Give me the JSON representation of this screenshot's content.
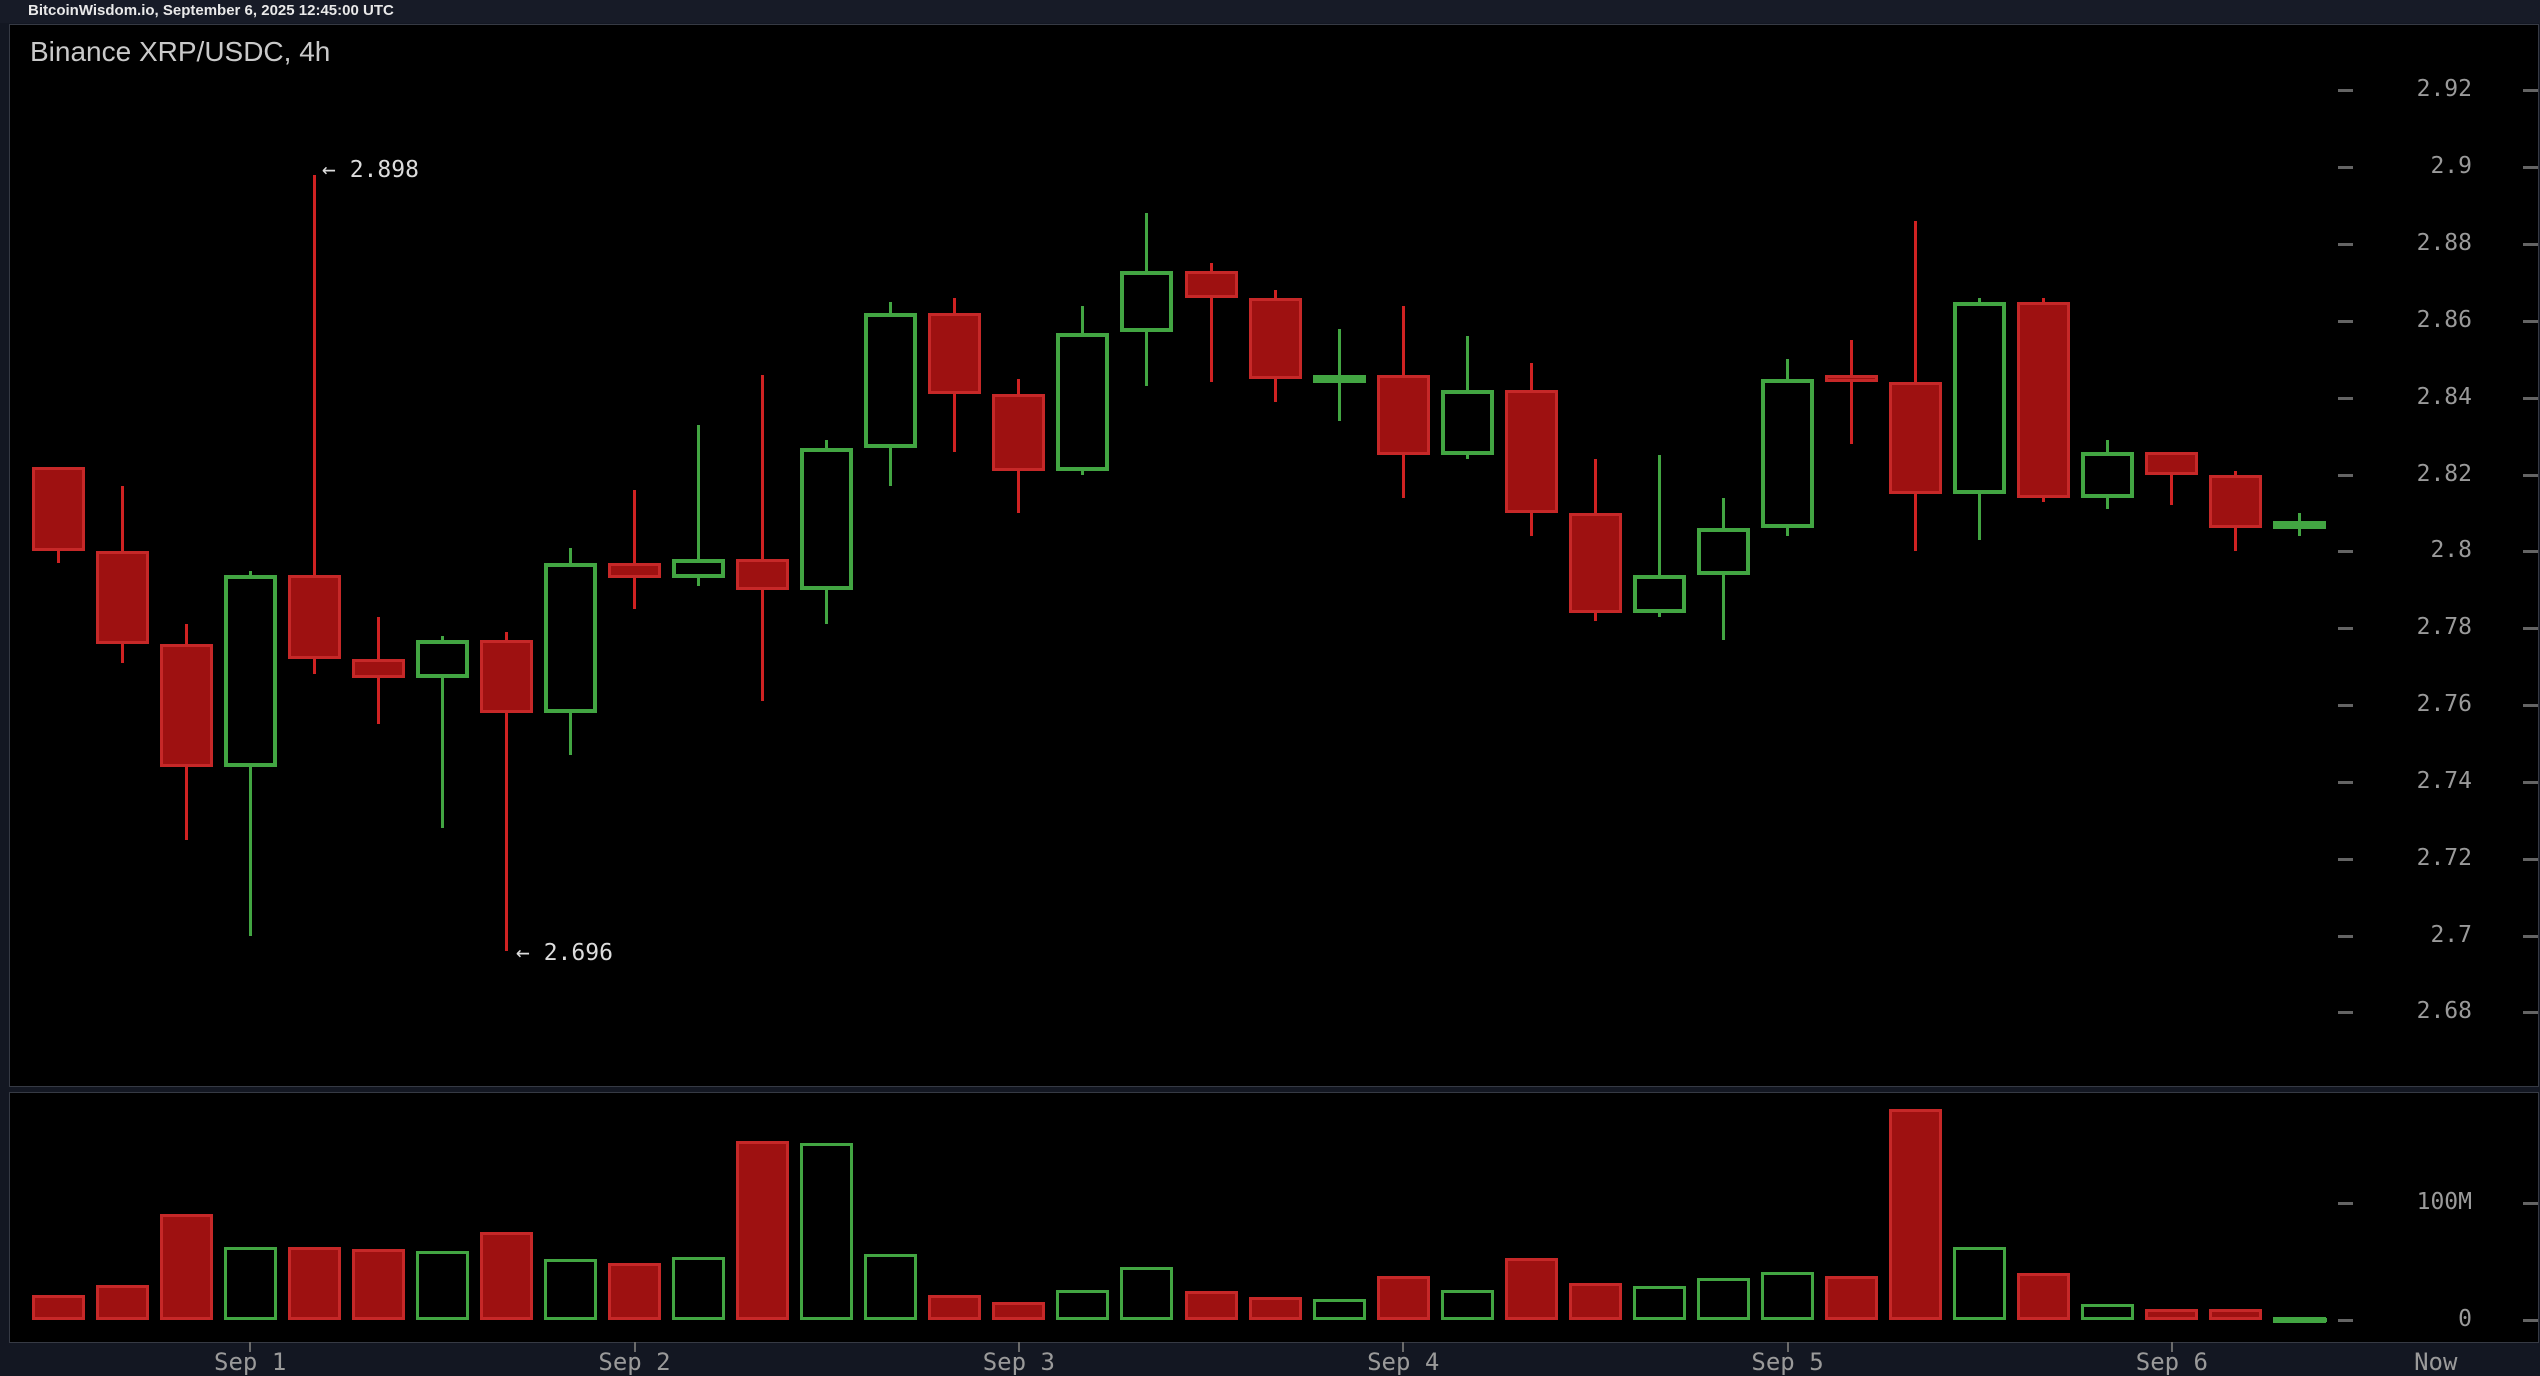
{
  "header": {
    "source_line": "BitcoinWisdom.io, September 6, 2025 12:45:00 UTC"
  },
  "chart": {
    "title": "Binance XRP/USDC, 4h"
  },
  "annotations": {
    "high_label": "← 2.898",
    "low_label": "← 2.696"
  },
  "colors": {
    "background": "#131722",
    "pane_bg": "#000000",
    "bull": "#42a542",
    "bear_fill": "#9e1111",
    "bear_border": "#c62828",
    "axis_text": "#9a9a9a",
    "annotation_text": "#dcdcdc"
  },
  "chart_data": {
    "type": "candlestick",
    "symbol": "Binance XRP/USDC",
    "interval": "4h",
    "title": "Binance XRP/USDC, 4h",
    "legend_position": "none",
    "grid": "off",
    "price_axis": {
      "ylim": [
        2.67,
        2.93
      ],
      "ticks": [
        {
          "label": "2.92",
          "value": 2.92
        },
        {
          "label": "2.9",
          "value": 2.9
        },
        {
          "label": "2.88",
          "value": 2.88
        },
        {
          "label": "2.86",
          "value": 2.86
        },
        {
          "label": "2.84",
          "value": 2.84
        },
        {
          "label": "2.82",
          "value": 2.82
        },
        {
          "label": "2.8",
          "value": 2.8
        },
        {
          "label": "2.78",
          "value": 2.78
        },
        {
          "label": "2.76",
          "value": 2.76
        },
        {
          "label": "2.74",
          "value": 2.74
        },
        {
          "label": "2.72",
          "value": 2.72
        },
        {
          "label": "2.7",
          "value": 2.7
        },
        {
          "label": "2.68",
          "value": 2.68
        }
      ]
    },
    "volume_axis": {
      "unit": "millions",
      "ticks": [
        {
          "label": "100M",
          "value": 100
        },
        {
          "label": "0",
          "value": 0
        }
      ]
    },
    "x_axis": {
      "ticks": [
        {
          "label": "Sep 1",
          "candle": 4
        },
        {
          "label": "Sep 2",
          "candle": 10
        },
        {
          "label": "Sep 3",
          "candle": 16
        },
        {
          "label": "Sep 4",
          "candle": 22
        },
        {
          "label": "Sep 5",
          "candle": 28
        },
        {
          "label": "Sep 6",
          "candle": 34
        },
        {
          "label": "Now",
          "candle": 38.12
        }
      ]
    },
    "annotated_high": 2.898,
    "annotated_low": 2.696,
    "candles": [
      {
        "o": 2.822,
        "h": 2.822,
        "l": 2.797,
        "c": 2.8,
        "vol_m": 21
      },
      {
        "o": 2.8,
        "h": 2.817,
        "l": 2.771,
        "c": 2.776,
        "vol_m": 30
      },
      {
        "o": 2.776,
        "h": 2.781,
        "l": 2.725,
        "c": 2.744,
        "vol_m": 91
      },
      {
        "o": 2.744,
        "h": 2.795,
        "l": 2.7,
        "c": 2.794,
        "vol_m": 62
      },
      {
        "o": 2.794,
        "h": 2.898,
        "l": 2.768,
        "c": 2.772,
        "vol_m": 62
      },
      {
        "o": 2.772,
        "h": 2.783,
        "l": 2.755,
        "c": 2.767,
        "vol_m": 61
      },
      {
        "o": 2.767,
        "h": 2.778,
        "l": 2.728,
        "c": 2.777,
        "vol_m": 59
      },
      {
        "o": 2.777,
        "h": 2.779,
        "l": 2.696,
        "c": 2.758,
        "vol_m": 75
      },
      {
        "o": 2.758,
        "h": 2.801,
        "l": 2.747,
        "c": 2.797,
        "vol_m": 52
      },
      {
        "o": 2.797,
        "h": 2.816,
        "l": 2.785,
        "c": 2.793,
        "vol_m": 49
      },
      {
        "o": 2.793,
        "h": 2.833,
        "l": 2.791,
        "c": 2.798,
        "vol_m": 54
      },
      {
        "o": 2.798,
        "h": 2.846,
        "l": 2.761,
        "c": 2.79,
        "vol_m": 153
      },
      {
        "o": 2.79,
        "h": 2.829,
        "l": 2.781,
        "c": 2.827,
        "vol_m": 151
      },
      {
        "o": 2.827,
        "h": 2.865,
        "l": 2.817,
        "c": 2.862,
        "vol_m": 56
      },
      {
        "o": 2.862,
        "h": 2.866,
        "l": 2.826,
        "c": 2.841,
        "vol_m": 21
      },
      {
        "o": 2.841,
        "h": 2.845,
        "l": 2.81,
        "c": 2.821,
        "vol_m": 15
      },
      {
        "o": 2.821,
        "h": 2.864,
        "l": 2.82,
        "c": 2.857,
        "vol_m": 26
      },
      {
        "o": 2.857,
        "h": 2.888,
        "l": 2.843,
        "c": 2.873,
        "vol_m": 45
      },
      {
        "o": 2.873,
        "h": 2.875,
        "l": 2.844,
        "c": 2.866,
        "vol_m": 25
      },
      {
        "o": 2.866,
        "h": 2.868,
        "l": 2.839,
        "c": 2.845,
        "vol_m": 20
      },
      {
        "o": 2.845,
        "h": 2.858,
        "l": 2.834,
        "c": 2.846,
        "vol_m": 18
      },
      {
        "o": 2.846,
        "h": 2.864,
        "l": 2.814,
        "c": 2.825,
        "vol_m": 38
      },
      {
        "o": 2.825,
        "h": 2.856,
        "l": 2.824,
        "c": 2.842,
        "vol_m": 26
      },
      {
        "o": 2.842,
        "h": 2.849,
        "l": 2.804,
        "c": 2.81,
        "vol_m": 53
      },
      {
        "o": 2.81,
        "h": 2.824,
        "l": 2.782,
        "c": 2.784,
        "vol_m": 32
      },
      {
        "o": 2.784,
        "h": 2.825,
        "l": 2.783,
        "c": 2.794,
        "vol_m": 29
      },
      {
        "o": 2.794,
        "h": 2.814,
        "l": 2.777,
        "c": 2.806,
        "vol_m": 36
      },
      {
        "o": 2.806,
        "h": 2.85,
        "l": 2.804,
        "c": 2.845,
        "vol_m": 41
      },
      {
        "o": 2.846,
        "h": 2.855,
        "l": 2.828,
        "c": 2.844,
        "vol_m": 38
      },
      {
        "o": 2.844,
        "h": 2.886,
        "l": 2.8,
        "c": 2.815,
        "vol_m": 180
      },
      {
        "o": 2.815,
        "h": 2.866,
        "l": 2.803,
        "c": 2.865,
        "vol_m": 62
      },
      {
        "o": 2.865,
        "h": 2.866,
        "l": 2.813,
        "c": 2.814,
        "vol_m": 40
      },
      {
        "o": 2.814,
        "h": 2.829,
        "l": 2.811,
        "c": 2.826,
        "vol_m": 14
      },
      {
        "o": 2.826,
        "h": 2.826,
        "l": 2.812,
        "c": 2.82,
        "vol_m": 9
      },
      {
        "o": 2.82,
        "h": 2.821,
        "l": 2.8,
        "c": 2.806,
        "vol_m": 9
      },
      {
        "o": 2.806,
        "h": 2.81,
        "l": 2.804,
        "c": 2.808,
        "vol_m": 1
      }
    ]
  }
}
